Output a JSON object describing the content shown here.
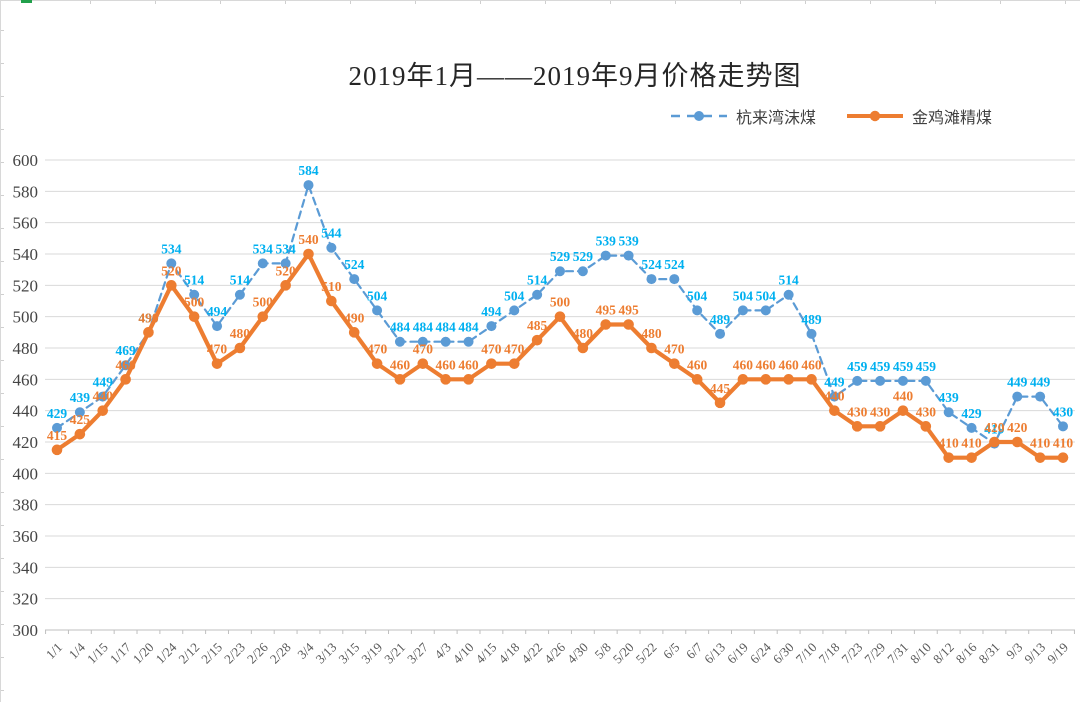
{
  "chart_data": {
    "type": "line",
    "title": "2019年1月——2019年9月价格走势图",
    "categories": [
      "1/1",
      "1/4",
      "1/15",
      "1/17",
      "1/20",
      "1/24",
      "2/12",
      "2/15",
      "2/23",
      "2/26",
      "2/28",
      "3/4",
      "3/13",
      "3/15",
      "3/19",
      "3/21",
      "3/27",
      "4/3",
      "4/10",
      "4/15",
      "4/18",
      "4/22",
      "4/26",
      "4/30",
      "5/8",
      "5/20",
      "5/22",
      "6/5",
      "6/7",
      "6/13",
      "6/19",
      "6/24",
      "6/30",
      "7/10",
      "7/18",
      "7/23",
      "7/29",
      "7/31",
      "8/10",
      "8/12",
      "8/16",
      "8/31",
      "9/3",
      "9/13",
      "9/19"
    ],
    "series": [
      {
        "name": "杭来湾沫煤",
        "style": "dashed",
        "color": "#5b9bd5",
        "label_color": "#00b0f0",
        "values": [
          429,
          439,
          449,
          469,
          490,
          534,
          514,
          494,
          514,
          534,
          534,
          584,
          544,
          524,
          504,
          484,
          484,
          484,
          484,
          494,
          504,
          514,
          529,
          529,
          539,
          539,
          524,
          524,
          504,
          489,
          504,
          504,
          514,
          489,
          449,
          459,
          459,
          459,
          459,
          439,
          429,
          419,
          449,
          449,
          430
        ]
      },
      {
        "name": "金鸡滩精煤",
        "style": "solid",
        "color": "#ed7d31",
        "label_color": "#ed7d31",
        "values": [
          415,
          425,
          440,
          460,
          490,
          520,
          500,
          470,
          480,
          500,
          520,
          540,
          510,
          490,
          470,
          460,
          470,
          460,
          460,
          470,
          470,
          485,
          500,
          480,
          495,
          495,
          480,
          470,
          460,
          445,
          460,
          460,
          460,
          460,
          440,
          430,
          430,
          440,
          430,
          410,
          410,
          420,
          420,
          410,
          410
        ]
      }
    ],
    "ylim": [
      300,
      600
    ],
    "ytick_step": 20,
    "yticks": [
      300,
      320,
      340,
      360,
      380,
      400,
      420,
      440,
      460,
      480,
      500,
      520,
      540,
      560,
      580,
      600
    ],
    "grid": true,
    "grid_color": "#d9d9d9",
    "axis_color": "#bfbfbf",
    "legend_position": "top-right",
    "show_data_labels": true
  },
  "sheet_edge": {
    "line_color": "#d8d8d8",
    "accent_color": "#21a04b"
  }
}
